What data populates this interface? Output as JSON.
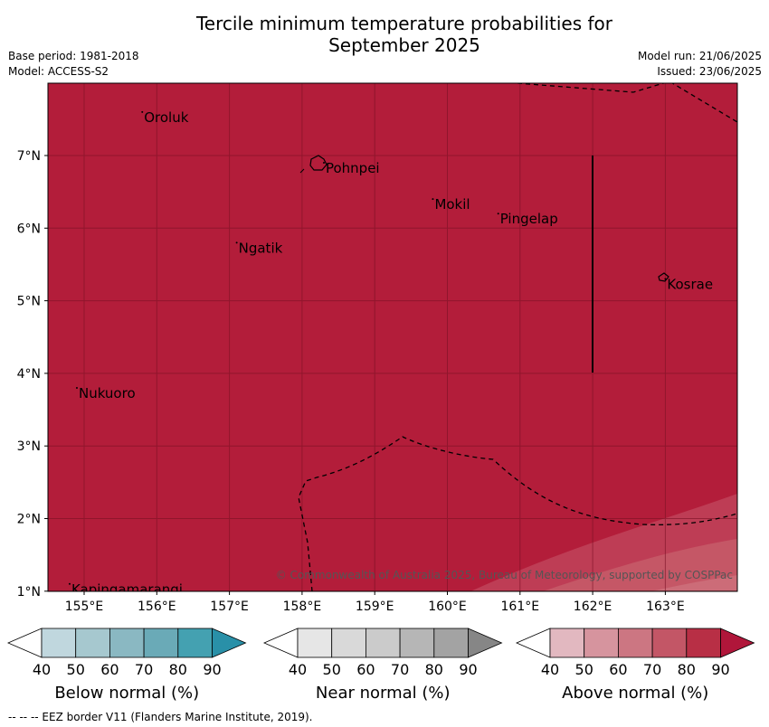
{
  "title_line1": "Tercile minimum temperature probabilities for",
  "title_line2": "September 2025",
  "meta_left": [
    "Base period: 1981-2018",
    "Model: ACCESS-S2"
  ],
  "meta_right": [
    "Model run: 21/06/2025",
    "Issued: 23/06/2025"
  ],
  "map": {
    "background_color": "#b31d3a",
    "lon_labels": [
      "155°E",
      "156°E",
      "157°E",
      "158°E",
      "159°E",
      "160°E",
      "161°E",
      "162°E",
      "163°E"
    ],
    "lat_labels": [
      "7°N",
      "6°N",
      "5°N",
      "4°N",
      "3°N",
      "2°N",
      "1°N"
    ],
    "places": [
      {
        "name": "Oroluk",
        "lon": 155.8,
        "lat": 7.6
      },
      {
        "name": "Pohnpei",
        "lon": 158.3,
        "lat": 6.9
      },
      {
        "name": "Mokil",
        "lon": 159.8,
        "lat": 6.4
      },
      {
        "name": "Pingelap",
        "lon": 160.7,
        "lat": 6.2
      },
      {
        "name": "Ngatik",
        "lon": 157.1,
        "lat": 5.8
      },
      {
        "name": "Kosrae",
        "lon": 163.0,
        "lat": 5.3
      },
      {
        "name": "Nukuoro",
        "lon": 154.9,
        "lat": 3.8
      },
      {
        "name": "Kapingamarangi",
        "lon": 154.8,
        "lat": 1.1
      }
    ],
    "copyright": "© Commonwealth of Australia 2025, Bureau of Meteorology, supported by COSPPac"
  },
  "colorbars": [
    {
      "title": "Below normal (%)",
      "ticks": [
        "40",
        "50",
        "60",
        "70",
        "80",
        "90"
      ],
      "colors": [
        "#ffffff",
        "#c0d7de",
        "#a6c8cf",
        "#8ab8c2",
        "#6aaab7",
        "#44a1b1",
        "#2990a8"
      ]
    },
    {
      "title": "Near normal (%)",
      "ticks": [
        "40",
        "50",
        "60",
        "70",
        "80",
        "90"
      ],
      "colors": [
        "#ffffff",
        "#e6e6e6",
        "#d9d9d9",
        "#cbcbcb",
        "#b6b6b6",
        "#a3a3a3",
        "#868686"
      ]
    },
    {
      "title": "Above normal (%)",
      "ticks": [
        "40",
        "50",
        "60",
        "70",
        "80",
        "90"
      ],
      "colors": [
        "#ffffff",
        "#e2b8c0",
        "#d6949e",
        "#cc7682",
        "#c35666",
        "#b82f45",
        "#b0163a"
      ]
    }
  ],
  "eez_note": "--  --  -- EEZ border V11 (Flanders Marine Institute, 2019)."
}
